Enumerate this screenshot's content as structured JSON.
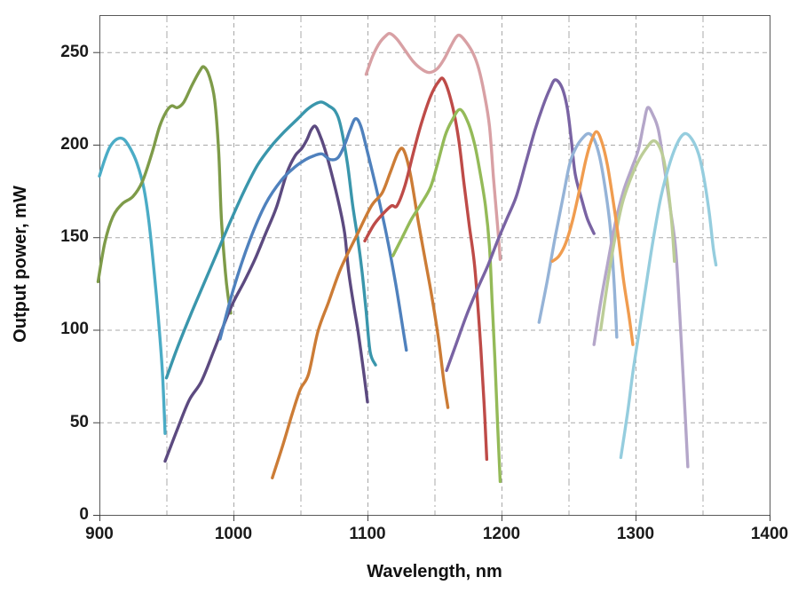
{
  "figure": {
    "background": "#ffffff",
    "frame_color": "#595959",
    "grid_color": "#a8a8a8",
    "tick_color": "#404040",
    "text_color": "#1a1a1a"
  },
  "labels": {
    "x_axis_title": "Wavelength, nm",
    "y_axis_title": "Output power, mW"
  },
  "chart_data": {
    "type": "line",
    "title": "",
    "xlabel": "Wavelength, nm",
    "ylabel": "Output power, mW",
    "xlim": [
      900,
      1400
    ],
    "ylim": [
      0,
      270
    ],
    "x_tick_labels": [
      900,
      1000,
      1100,
      1200,
      1300,
      1400
    ],
    "x_gridline_step": 50,
    "y_tick_labels": [
      0,
      50,
      100,
      150,
      200,
      250
    ],
    "grid": true,
    "legend": "none",
    "series": [
      {
        "name": "curve-1-sky-blue",
        "color": "#4BACC6",
        "points": [
          [
            900,
            183
          ],
          [
            904,
            192
          ],
          [
            908,
            199
          ],
          [
            913,
            203
          ],
          [
            918,
            203
          ],
          [
            923,
            198
          ],
          [
            928,
            190
          ],
          [
            933,
            177
          ],
          [
            937,
            158
          ],
          [
            941,
            130
          ],
          [
            944,
            106
          ],
          [
            947,
            77
          ],
          [
            949,
            44
          ]
        ]
      },
      {
        "name": "curve-2-olive-green",
        "color": "#7E9B49",
        "points": [
          [
            899,
            126
          ],
          [
            904,
            147
          ],
          [
            910,
            161
          ],
          [
            917,
            168
          ],
          [
            925,
            172
          ],
          [
            932,
            180
          ],
          [
            939,
            195
          ],
          [
            945,
            210
          ],
          [
            950,
            218
          ],
          [
            954,
            221
          ],
          [
            958,
            220
          ],
          [
            963,
            223
          ],
          [
            969,
            232
          ],
          [
            975,
            240
          ],
          [
            978,
            242
          ],
          [
            982,
            237
          ],
          [
            986,
            224
          ],
          [
            989,
            196
          ],
          [
            991,
            160
          ],
          [
            994,
            131
          ],
          [
            996,
            118
          ],
          [
            998,
            109
          ]
        ]
      },
      {
        "name": "curve-3-teal",
        "color": "#3A96AC",
        "points": [
          [
            950,
            74
          ],
          [
            958,
            90
          ],
          [
            968,
            108
          ],
          [
            978,
            125
          ],
          [
            988,
            142
          ],
          [
            998,
            159
          ],
          [
            1008,
            175
          ],
          [
            1018,
            189
          ],
          [
            1028,
            199
          ],
          [
            1038,
            207
          ],
          [
            1048,
            214
          ],
          [
            1055,
            219
          ],
          [
            1061,
            222
          ],
          [
            1066,
            223
          ],
          [
            1071,
            221
          ],
          [
            1076,
            218
          ],
          [
            1080,
            210
          ],
          [
            1085,
            190
          ],
          [
            1089,
            167
          ],
          [
            1093,
            148
          ],
          [
            1096,
            131
          ],
          [
            1099,
            110
          ],
          [
            1102,
            88
          ],
          [
            1106,
            81
          ]
        ]
      },
      {
        "name": "curve-4-indigo",
        "color": "#5C4A80",
        "points": [
          [
            949,
            29
          ],
          [
            958,
            46
          ],
          [
            967,
            62
          ],
          [
            976,
            72
          ],
          [
            985,
            88
          ],
          [
            993,
            103
          ],
          [
            1000,
            115
          ],
          [
            1008,
            126
          ],
          [
            1016,
            138
          ],
          [
            1024,
            152
          ],
          [
            1032,
            166
          ],
          [
            1040,
            185
          ],
          [
            1046,
            194
          ],
          [
            1051,
            198
          ],
          [
            1055,
            203
          ],
          [
            1058,
            208
          ],
          [
            1061,
            210
          ],
          [
            1064,
            206
          ],
          [
            1068,
            198
          ],
          [
            1073,
            185
          ],
          [
            1079,
            167
          ],
          [
            1083,
            152
          ],
          [
            1086,
            131
          ],
          [
            1090,
            112
          ],
          [
            1093,
            99
          ],
          [
            1097,
            78
          ],
          [
            1100,
            61
          ]
        ]
      },
      {
        "name": "curve-5-steel-blue",
        "color": "#4F81BD",
        "points": [
          [
            990,
            95
          ],
          [
            1000,
            122
          ],
          [
            1012,
            148
          ],
          [
            1024,
            168
          ],
          [
            1036,
            181
          ],
          [
            1046,
            188
          ],
          [
            1054,
            192
          ],
          [
            1060,
            194
          ],
          [
            1066,
            195
          ],
          [
            1072,
            192
          ],
          [
            1078,
            193
          ],
          [
            1083,
            200
          ],
          [
            1087,
            208
          ],
          [
            1091,
            214
          ],
          [
            1095,
            210
          ],
          [
            1100,
            196
          ],
          [
            1107,
            175
          ],
          [
            1114,
            152
          ],
          [
            1121,
            125
          ],
          [
            1127,
            98
          ],
          [
            1129,
            89
          ]
        ]
      },
      {
        "name": "curve-6-orange",
        "color": "#CC7C36",
        "points": [
          [
            1029,
            20
          ],
          [
            1037,
            38
          ],
          [
            1044,
            55
          ],
          [
            1050,
            68
          ],
          [
            1056,
            76
          ],
          [
            1063,
            99
          ],
          [
            1071,
            115
          ],
          [
            1080,
            133
          ],
          [
            1092,
            151
          ],
          [
            1103,
            167
          ],
          [
            1111,
            174
          ],
          [
            1117,
            185
          ],
          [
            1123,
            196
          ],
          [
            1127,
            197
          ],
          [
            1132,
            184
          ],
          [
            1138,
            158
          ],
          [
            1143,
            138
          ],
          [
            1148,
            118
          ],
          [
            1153,
            95
          ],
          [
            1157,
            72
          ],
          [
            1160,
            58
          ]
        ]
      },
      {
        "name": "curve-7-dusty-pink",
        "color": "#D8A0A4",
        "points": [
          [
            1099,
            238
          ],
          [
            1104,
            248
          ],
          [
            1109,
            255
          ],
          [
            1114,
            259
          ],
          [
            1117,
            260
          ],
          [
            1122,
            257
          ],
          [
            1128,
            251
          ],
          [
            1134,
            245
          ],
          [
            1140,
            241
          ],
          [
            1146,
            239
          ],
          [
            1152,
            241
          ],
          [
            1157,
            246
          ],
          [
            1162,
            253
          ],
          [
            1166,
            258
          ],
          [
            1169,
            259
          ],
          [
            1174,
            255
          ],
          [
            1179,
            249
          ],
          [
            1183,
            241
          ],
          [
            1187,
            228
          ],
          [
            1191,
            210
          ],
          [
            1194,
            182
          ],
          [
            1196,
            165
          ],
          [
            1198,
            148
          ],
          [
            1199,
            138
          ]
        ]
      },
      {
        "name": "curve-8-dark-red",
        "color": "#BE4B48",
        "points": [
          [
            1098,
            148
          ],
          [
            1105,
            157
          ],
          [
            1112,
            163
          ],
          [
            1118,
            167
          ],
          [
            1122,
            167
          ],
          [
            1128,
            178
          ],
          [
            1134,
            195
          ],
          [
            1140,
            211
          ],
          [
            1147,
            226
          ],
          [
            1153,
            234
          ],
          [
            1157,
            235
          ],
          [
            1163,
            222
          ],
          [
            1168,
            203
          ],
          [
            1172,
            179
          ],
          [
            1176,
            156
          ],
          [
            1180,
            134
          ],
          [
            1184,
            96
          ],
          [
            1187,
            60
          ],
          [
            1189,
            30
          ]
        ]
      },
      {
        "name": "curve-9-yellow-green",
        "color": "#94BA58",
        "points": [
          [
            1119,
            140
          ],
          [
            1126,
            150
          ],
          [
            1133,
            160
          ],
          [
            1140,
            168
          ],
          [
            1147,
            177
          ],
          [
            1152,
            189
          ],
          [
            1158,
            205
          ],
          [
            1163,
            213
          ],
          [
            1169,
            219
          ],
          [
            1175,
            212
          ],
          [
            1180,
            200
          ],
          [
            1184,
            185
          ],
          [
            1188,
            167
          ],
          [
            1191,
            145
          ],
          [
            1193,
            115
          ],
          [
            1195,
            85
          ],
          [
            1197,
            50
          ],
          [
            1199,
            18
          ]
        ]
      },
      {
        "name": "curve-10-purple",
        "color": "#7963A3",
        "points": [
          [
            1159,
            78
          ],
          [
            1166,
            92
          ],
          [
            1174,
            108
          ],
          [
            1182,
            122
          ],
          [
            1190,
            135
          ],
          [
            1197,
            148
          ],
          [
            1204,
            160
          ],
          [
            1211,
            172
          ],
          [
            1218,
            190
          ],
          [
            1225,
            208
          ],
          [
            1231,
            221
          ],
          [
            1236,
            230
          ],
          [
            1240,
            235
          ],
          [
            1245,
            231
          ],
          [
            1249,
            220
          ],
          [
            1252,
            203
          ],
          [
            1255,
            184
          ],
          [
            1260,
            170
          ],
          [
            1264,
            160
          ],
          [
            1269,
            152
          ]
        ]
      },
      {
        "name": "curve-11-periwinkle",
        "color": "#95B3D7",
        "points": [
          [
            1228,
            104
          ],
          [
            1234,
            126
          ],
          [
            1240,
            150
          ],
          [
            1246,
            172
          ],
          [
            1251,
            190
          ],
          [
            1256,
            199
          ],
          [
            1261,
            204
          ],
          [
            1265,
            206
          ],
          [
            1269,
            203
          ],
          [
            1273,
            194
          ],
          [
            1277,
            178
          ],
          [
            1281,
            156
          ],
          [
            1284,
            125
          ],
          [
            1286,
            96
          ]
        ]
      },
      {
        "name": "curve-12-lavender",
        "color": "#B4A6C9",
        "points": [
          [
            1269,
            92
          ],
          [
            1274,
            115
          ],
          [
            1279,
            135
          ],
          [
            1285,
            158
          ],
          [
            1291,
            175
          ],
          [
            1297,
            187
          ],
          [
            1302,
            197
          ],
          [
            1306,
            211
          ],
          [
            1309,
            220
          ],
          [
            1313,
            216
          ],
          [
            1317,
            208
          ],
          [
            1321,
            190
          ],
          [
            1326,
            165
          ],
          [
            1330,
            143
          ],
          [
            1333,
            108
          ],
          [
            1336,
            68
          ],
          [
            1339,
            26
          ]
        ]
      },
      {
        "name": "curve-13-pale-green",
        "color": "#BCCD97",
        "points": [
          [
            1274,
            100
          ],
          [
            1279,
            125
          ],
          [
            1284,
            147
          ],
          [
            1290,
            168
          ],
          [
            1296,
            181
          ],
          [
            1302,
            191
          ],
          [
            1308,
            198
          ],
          [
            1313,
            202
          ],
          [
            1317,
            200
          ],
          [
            1321,
            192
          ],
          [
            1324,
            178
          ],
          [
            1327,
            158
          ],
          [
            1329,
            137
          ]
        ]
      },
      {
        "name": "curve-14-light-orange",
        "color": "#F09C4F",
        "points": [
          [
            1238,
            137
          ],
          [
            1243,
            140
          ],
          [
            1248,
            147
          ],
          [
            1253,
            159
          ],
          [
            1258,
            175
          ],
          [
            1263,
            192
          ],
          [
            1267,
            202
          ],
          [
            1271,
            207
          ],
          [
            1275,
            201
          ],
          [
            1279,
            189
          ],
          [
            1283,
            171
          ],
          [
            1287,
            151
          ],
          [
            1291,
            127
          ],
          [
            1295,
            108
          ],
          [
            1298,
            92
          ]
        ]
      },
      {
        "name": "curve-15-pale-cyan",
        "color": "#95CDDE",
        "points": [
          [
            1289,
            31
          ],
          [
            1294,
            55
          ],
          [
            1298,
            77
          ],
          [
            1302,
            96
          ],
          [
            1307,
            120
          ],
          [
            1313,
            148
          ],
          [
            1319,
            172
          ],
          [
            1326,
            191
          ],
          [
            1332,
            202
          ],
          [
            1337,
            206
          ],
          [
            1342,
            203
          ],
          [
            1347,
            195
          ],
          [
            1351,
            182
          ],
          [
            1355,
            163
          ],
          [
            1358,
            144
          ],
          [
            1360,
            135
          ]
        ]
      }
    ]
  }
}
